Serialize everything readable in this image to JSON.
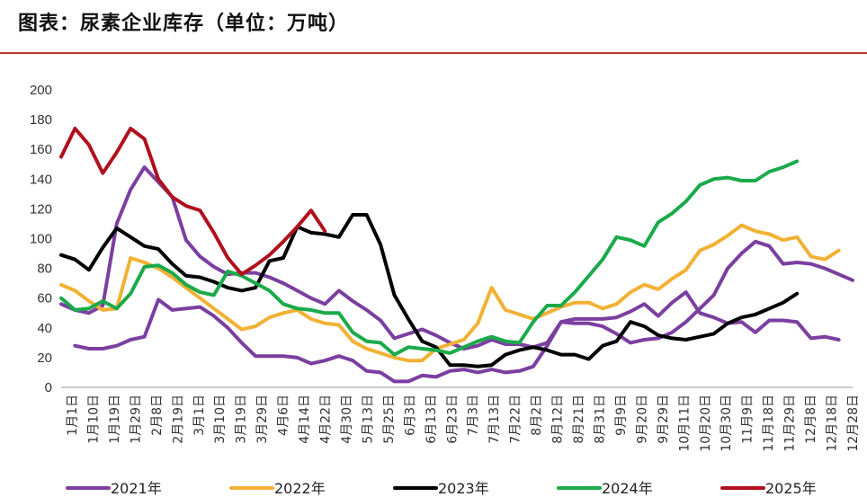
{
  "title": "图表：尿素企业库存（单位：万吨）",
  "colors": {
    "2021年": "#7b3fa0",
    "2022年": "#f2b134",
    "2023年": "#000000",
    "2024年": "#1aaa4a",
    "2025年": "#b0101e",
    "rule": "#c0392b"
  },
  "chart_data": {
    "type": "line",
    "title": "尿素企业库存",
    "ylabel": "万吨",
    "ylim": [
      0,
      200
    ],
    "yticks": [
      0,
      20,
      40,
      60,
      80,
      100,
      120,
      140,
      160,
      180,
      200
    ],
    "grid": false,
    "legend_position": "bottom",
    "categories": [
      "1月1日",
      "1月10日",
      "1月19日",
      "1月29日",
      "2月8日",
      "2月19日",
      "3月1日",
      "3月10日",
      "3月19日",
      "3月29日",
      "4月6日",
      "4月14日",
      "4月22日",
      "4月30日",
      "5月13日",
      "5月25日",
      "6月3日",
      "6月13日",
      "6月23日",
      "7月3日",
      "7月13日",
      "7月22日",
      "8月2日",
      "8月12日",
      "8月21日",
      "8月31日",
      "9月9日",
      "9月20日",
      "9月29日",
      "10月11日",
      "10月20日",
      "10月30日",
      "11月9日",
      "11月18日",
      "11月29日",
      "12月8日",
      "12月18日",
      "12月28日"
    ],
    "series": [
      {
        "name": "2021年",
        "values": [
          [
            0,
            56
          ],
          [
            1,
            52
          ],
          [
            2,
            50
          ],
          [
            3,
            55
          ],
          [
            4,
            110
          ],
          [
            5,
            133
          ],
          [
            6,
            148
          ],
          [
            7,
            138
          ],
          [
            8,
            128
          ],
          [
            9,
            99
          ],
          [
            10,
            88
          ],
          [
            11,
            81
          ],
          [
            12,
            76
          ],
          [
            13,
            77
          ],
          [
            14,
            77
          ],
          [
            15,
            74
          ],
          [
            16,
            70
          ],
          [
            17,
            65
          ],
          [
            18,
            60
          ],
          [
            19,
            56
          ],
          [
            20,
            65
          ],
          [
            21,
            58
          ],
          [
            22,
            52
          ],
          [
            23,
            45
          ],
          [
            24,
            33
          ],
          [
            25,
            36
          ],
          [
            26,
            39
          ],
          [
            27,
            35
          ],
          [
            28,
            30
          ],
          [
            29,
            26
          ],
          [
            30,
            28
          ],
          [
            31,
            32
          ],
          [
            32,
            29
          ],
          [
            33,
            29
          ],
          [
            34,
            27
          ],
          [
            35,
            30
          ],
          [
            36,
            44
          ],
          [
            37,
            46
          ],
          [
            38,
            46
          ],
          [
            39,
            46
          ],
          [
            40,
            47
          ],
          [
            41,
            51
          ],
          [
            42,
            56
          ],
          [
            43,
            48
          ],
          [
            44,
            57
          ],
          [
            45,
            64
          ],
          [
            46,
            50
          ],
          [
            47,
            47
          ],
          [
            48,
            43
          ],
          [
            49,
            44
          ],
          [
            50,
            37
          ],
          [
            51,
            45
          ],
          [
            52,
            45
          ],
          [
            53,
            44
          ],
          [
            54,
            33
          ],
          [
            55,
            34
          ],
          [
            56,
            32
          ]
        ]
      },
      {
        "name": "2021年",
        "values": [
          [
            1,
            28
          ],
          [
            2,
            26
          ],
          [
            3,
            26
          ],
          [
            4,
            28
          ],
          [
            5,
            32
          ],
          [
            6,
            34
          ],
          [
            7,
            59
          ],
          [
            8,
            52
          ],
          [
            9,
            53
          ],
          [
            10,
            54
          ],
          [
            11,
            48
          ],
          [
            12,
            40
          ],
          [
            13,
            30
          ],
          [
            14,
            21
          ],
          [
            15,
            21
          ],
          [
            16,
            21
          ],
          [
            17,
            20
          ],
          [
            18,
            16
          ],
          [
            19,
            18
          ],
          [
            20,
            21
          ],
          [
            21,
            18
          ],
          [
            22,
            11
          ],
          [
            23,
            10
          ],
          [
            24,
            4
          ],
          [
            25,
            4
          ],
          [
            26,
            8
          ],
          [
            27,
            7
          ],
          [
            28,
            11
          ],
          [
            29,
            12
          ],
          [
            30,
            10
          ],
          [
            31,
            12
          ],
          [
            32,
            10
          ],
          [
            33,
            11
          ],
          [
            34,
            14
          ],
          [
            35,
            28
          ],
          [
            36,
            44
          ],
          [
            37,
            43
          ],
          [
            38,
            43
          ],
          [
            39,
            41
          ],
          [
            40,
            36
          ],
          [
            41,
            30
          ],
          [
            42,
            32
          ],
          [
            43,
            33
          ],
          [
            44,
            37
          ],
          [
            45,
            44
          ],
          [
            46,
            53
          ],
          [
            47,
            62
          ],
          [
            48,
            80
          ],
          [
            49,
            90
          ],
          [
            50,
            98
          ],
          [
            51,
            95
          ],
          [
            52,
            83
          ],
          [
            53,
            84
          ],
          [
            54,
            83
          ],
          [
            55,
            80
          ],
          [
            56,
            76
          ],
          [
            57,
            72
          ]
        ]
      },
      {
        "name": "2022年",
        "values": [
          [
            0,
            69
          ],
          [
            1,
            65
          ],
          [
            2,
            58
          ],
          [
            3,
            52
          ],
          [
            4,
            53
          ],
          [
            5,
            87
          ],
          [
            6,
            84
          ],
          [
            7,
            80
          ],
          [
            8,
            74
          ],
          [
            9,
            67
          ],
          [
            10,
            60
          ],
          [
            11,
            53
          ],
          [
            12,
            46
          ],
          [
            13,
            39
          ],
          [
            14,
            41
          ],
          [
            15,
            47
          ],
          [
            16,
            50
          ],
          [
            17,
            52
          ],
          [
            18,
            46
          ],
          [
            19,
            43
          ],
          [
            20,
            42
          ],
          [
            21,
            31
          ],
          [
            22,
            26
          ],
          [
            23,
            23
          ],
          [
            24,
            20
          ],
          [
            25,
            18
          ],
          [
            26,
            18
          ],
          [
            27,
            26
          ],
          [
            28,
            29
          ],
          [
            29,
            32
          ],
          [
            30,
            43
          ],
          [
            31,
            67
          ],
          [
            32,
            52
          ],
          [
            33,
            49
          ],
          [
            34,
            46
          ],
          [
            35,
            50
          ],
          [
            36,
            54
          ],
          [
            37,
            57
          ],
          [
            38,
            57
          ],
          [
            39,
            53
          ],
          [
            40,
            56
          ],
          [
            41,
            64
          ],
          [
            42,
            69
          ],
          [
            43,
            66
          ],
          [
            44,
            73
          ],
          [
            45,
            79
          ],
          [
            46,
            92
          ],
          [
            47,
            96
          ],
          [
            48,
            102
          ],
          [
            49,
            109
          ],
          [
            50,
            105
          ],
          [
            51,
            103
          ],
          [
            52,
            99
          ],
          [
            53,
            101
          ],
          [
            54,
            88
          ],
          [
            55,
            86
          ],
          [
            56,
            92
          ]
        ]
      },
      {
        "name": "2023年",
        "values": [
          [
            0,
            89
          ],
          [
            1,
            86
          ],
          [
            2,
            79
          ],
          [
            3,
            94
          ],
          [
            4,
            107
          ],
          [
            5,
            101
          ],
          [
            6,
            95
          ],
          [
            7,
            93
          ],
          [
            8,
            83
          ],
          [
            9,
            75
          ],
          [
            10,
            74
          ],
          [
            11,
            71
          ],
          [
            12,
            67
          ],
          [
            13,
            65
          ],
          [
            14,
            67
          ],
          [
            15,
            85
          ],
          [
            16,
            87
          ],
          [
            17,
            108
          ],
          [
            18,
            104
          ],
          [
            19,
            103
          ],
          [
            20,
            101
          ],
          [
            21,
            116
          ],
          [
            22,
            116
          ],
          [
            23,
            96
          ],
          [
            24,
            62
          ],
          [
            25,
            46
          ],
          [
            26,
            31
          ],
          [
            27,
            27
          ],
          [
            28,
            15
          ],
          [
            29,
            15
          ],
          [
            30,
            14
          ],
          [
            31,
            15
          ],
          [
            32,
            22
          ],
          [
            33,
            25
          ],
          [
            34,
            27
          ],
          [
            35,
            25
          ],
          [
            36,
            22
          ],
          [
            37,
            22
          ],
          [
            38,
            19
          ],
          [
            39,
            28
          ],
          [
            40,
            31
          ],
          [
            41,
            44
          ],
          [
            42,
            41
          ],
          [
            43,
            35
          ],
          [
            44,
            33
          ],
          [
            45,
            32
          ],
          [
            46,
            34
          ],
          [
            47,
            36
          ],
          [
            48,
            43
          ],
          [
            49,
            47
          ],
          [
            50,
            49
          ],
          [
            51,
            53
          ],
          [
            52,
            57
          ],
          [
            53,
            63
          ]
        ]
      },
      {
        "name": "2024年",
        "values": [
          [
            0,
            60
          ],
          [
            1,
            52
          ],
          [
            2,
            53
          ],
          [
            3,
            58
          ],
          [
            4,
            53
          ],
          [
            5,
            63
          ],
          [
            6,
            81
          ],
          [
            7,
            82
          ],
          [
            8,
            77
          ],
          [
            9,
            69
          ],
          [
            10,
            64
          ],
          [
            11,
            62
          ],
          [
            12,
            78
          ],
          [
            13,
            75
          ],
          [
            14,
            70
          ],
          [
            15,
            65
          ],
          [
            16,
            56
          ],
          [
            17,
            53
          ],
          [
            18,
            52
          ],
          [
            19,
            50
          ],
          [
            20,
            50
          ],
          [
            21,
            37
          ],
          [
            22,
            31
          ],
          [
            23,
            30
          ],
          [
            24,
            22
          ],
          [
            25,
            27
          ],
          [
            26,
            26
          ],
          [
            27,
            25
          ],
          [
            28,
            23
          ],
          [
            29,
            27
          ],
          [
            30,
            31
          ],
          [
            31,
            34
          ],
          [
            32,
            31
          ],
          [
            33,
            30
          ],
          [
            34,
            44
          ],
          [
            35,
            55
          ],
          [
            36,
            55
          ],
          [
            37,
            64
          ],
          [
            38,
            75
          ],
          [
            39,
            86
          ],
          [
            40,
            101
          ],
          [
            41,
            99
          ],
          [
            42,
            95
          ],
          [
            43,
            111
          ],
          [
            44,
            117
          ],
          [
            45,
            125
          ],
          [
            46,
            136
          ],
          [
            47,
            140
          ],
          [
            48,
            141
          ],
          [
            49,
            139
          ],
          [
            50,
            139
          ],
          [
            51,
            145
          ],
          [
            52,
            148
          ],
          [
            53,
            152
          ]
        ]
      },
      {
        "name": "2025年",
        "values": [
          [
            0,
            155
          ],
          [
            1,
            174
          ],
          [
            2,
            163
          ],
          [
            3,
            144
          ],
          [
            4,
            158
          ],
          [
            5,
            174
          ],
          [
            6,
            167
          ],
          [
            7,
            140
          ],
          [
            8,
            128
          ],
          [
            9,
            122
          ],
          [
            10,
            119
          ],
          [
            11,
            104
          ],
          [
            12,
            87
          ],
          [
            13,
            76
          ],
          [
            14,
            82
          ],
          [
            15,
            89
          ],
          [
            16,
            98
          ],
          [
            17,
            108
          ],
          [
            18,
            119
          ],
          [
            19,
            105
          ]
        ]
      }
    ]
  }
}
